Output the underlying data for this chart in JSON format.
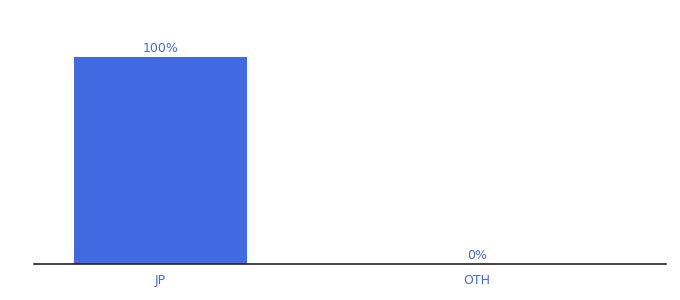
{
  "categories": [
    "JP",
    "OTH"
  ],
  "values": [
    100,
    0
  ],
  "bar_color": "#4169e1",
  "bar_width": 0.55,
  "label_fontsize": 9,
  "tick_fontsize": 9,
  "tick_color": "#4169e1",
  "value_labels": [
    "100%",
    "0%"
  ],
  "ylim": [
    0,
    110
  ],
  "background_color": "#ffffff",
  "axis_line_color": "#222222"
}
